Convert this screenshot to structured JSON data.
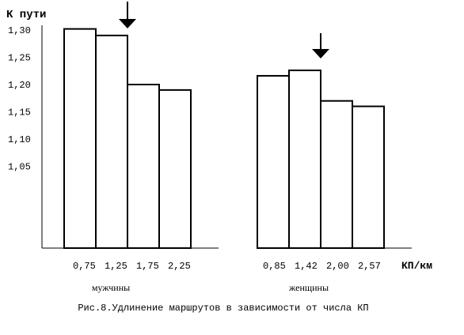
{
  "chart_data": {
    "type": "bar",
    "title": "К пути",
    "xlabel": "КП/км",
    "caption": "Рис.8.Удлинение маршрутов в зависимости от числа КП",
    "ylim": [
      0.9,
      1.33
    ],
    "y_ticks": [
      "1,30",
      "1,25",
      "1,20",
      "1,15",
      "1,10",
      "1,05"
    ],
    "y_tick_values": [
      1.3,
      1.25,
      1.2,
      1.15,
      1.1,
      1.05
    ],
    "groups": [
      {
        "name": "мужчины",
        "categories": [
          "0,75",
          "1,25",
          "1,75",
          "2,25"
        ],
        "values": [
          1.302,
          1.29,
          1.2,
          1.19
        ],
        "arrow_after_index": 1
      },
      {
        "name": "женщины",
        "categories": [
          "0,85",
          "1,42",
          "2,00",
          "2,57"
        ],
        "values": [
          1.216,
          1.226,
          1.17,
          1.16
        ],
        "arrow_after_index": 1
      }
    ]
  },
  "colors": {
    "bar_fill": "#ffffff",
    "stroke": "#000000",
    "text": "#000000"
  }
}
